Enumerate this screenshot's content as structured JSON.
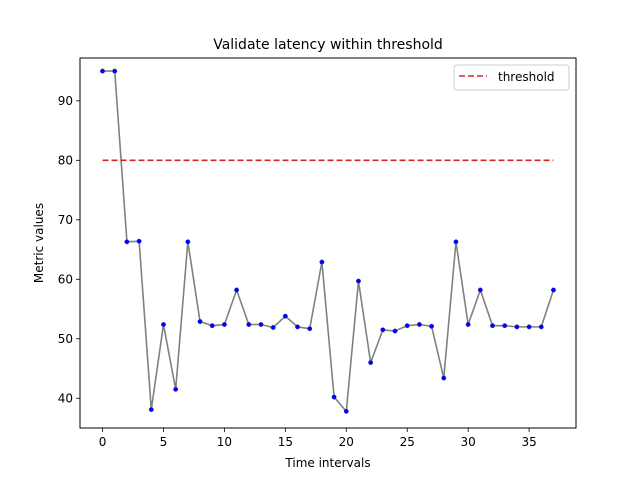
{
  "chart_data": {
    "type": "line",
    "title": "Validate latency within threshold",
    "xlabel": "Time intervals",
    "ylabel": "Metric values",
    "xlim": [
      -1.85,
      38.85
    ],
    "ylim": [
      35.0,
      97.2
    ],
    "xticks": [
      0,
      5,
      10,
      15,
      20,
      25,
      30,
      35
    ],
    "yticks": [
      40,
      50,
      60,
      70,
      80,
      90
    ],
    "grid": false,
    "legend": {
      "placement": "upper-right",
      "entries": [
        "threshold"
      ]
    },
    "series": [
      {
        "color": "#808080",
        "marker_color": "#0000ff",
        "x": [
          0,
          1,
          2,
          3,
          4,
          5,
          6,
          7,
          8,
          9,
          10,
          11,
          12,
          13,
          14,
          15,
          16,
          17,
          18,
          19,
          20,
          21,
          22,
          23,
          24,
          25,
          26,
          27,
          28,
          29,
          30,
          31,
          32,
          33,
          34,
          35,
          36,
          37
        ],
        "y": [
          95.0,
          95.0,
          66.3,
          66.4,
          38.1,
          52.4,
          41.5,
          66.3,
          52.9,
          52.2,
          52.4,
          58.2,
          52.4,
          52.4,
          51.9,
          53.8,
          52.0,
          51.7,
          62.9,
          40.2,
          37.8,
          59.7,
          46.0,
          51.5,
          51.3,
          52.2,
          52.4,
          52.1,
          43.4,
          66.3,
          52.4,
          58.2,
          52.2,
          52.2,
          52.0,
          52.0,
          52.0,
          58.2
        ]
      },
      {
        "name": "threshold",
        "color": "#d62728",
        "dashed": true,
        "x": [
          0,
          37
        ],
        "y": [
          80,
          80
        ]
      }
    ]
  }
}
